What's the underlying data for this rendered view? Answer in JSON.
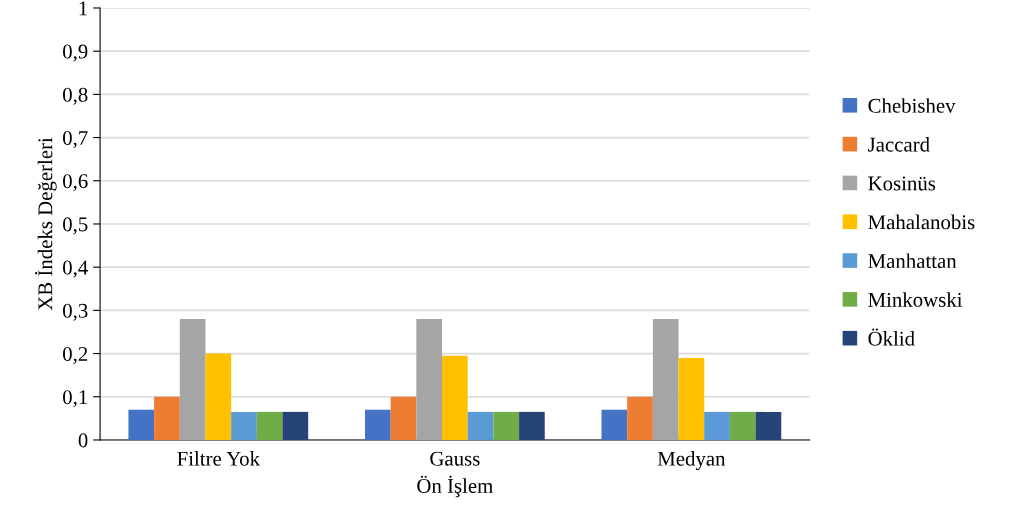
{
  "chart_data": {
    "type": "bar",
    "xlabel": "Ön İşlem",
    "ylabel": "XB İndeks Değerleri",
    "categories": [
      "Filtre Yok",
      "Gauss",
      "Medyan"
    ],
    "series": [
      {
        "name": "Chebishev",
        "color": "#4472c4",
        "values": [
          0.07,
          0.07,
          0.07
        ]
      },
      {
        "name": "Jaccard",
        "color": "#ed7d31",
        "values": [
          0.1,
          0.1,
          0.1
        ]
      },
      {
        "name": "Kosinüs",
        "color": "#a5a5a5",
        "values": [
          0.28,
          0.28,
          0.28
        ]
      },
      {
        "name": "Mahalanobis",
        "color": "#ffc000",
        "values": [
          0.2,
          0.195,
          0.19
        ]
      },
      {
        "name": "Manhattan",
        "color": "#5b9bd5",
        "values": [
          0.065,
          0.065,
          0.065
        ]
      },
      {
        "name": "Minkowski",
        "color": "#70ad47",
        "values": [
          0.065,
          0.065,
          0.065
        ]
      },
      {
        "name": "Öklid",
        "color": "#264478",
        "values": [
          0.065,
          0.065,
          0.065
        ]
      }
    ],
    "ylim": [
      0,
      1
    ],
    "yticks": [
      0,
      {
        "value": 0.1,
        "label": "0,1"
      },
      {
        "value": 0.2,
        "label": "0,2"
      },
      {
        "value": 0.3,
        "label": "0,3"
      },
      {
        "value": 0.4,
        "label": "0,4"
      },
      {
        "value": 0.5,
        "label": "0,5"
      },
      {
        "value": 0.6,
        "label": "0,6"
      },
      {
        "value": 0.7,
        "label": "0,7"
      },
      {
        "value": 0.8,
        "label": "0,8"
      },
      {
        "value": 0.9,
        "label": "0,9"
      },
      1
    ],
    "grid": "y",
    "legend": "right"
  }
}
